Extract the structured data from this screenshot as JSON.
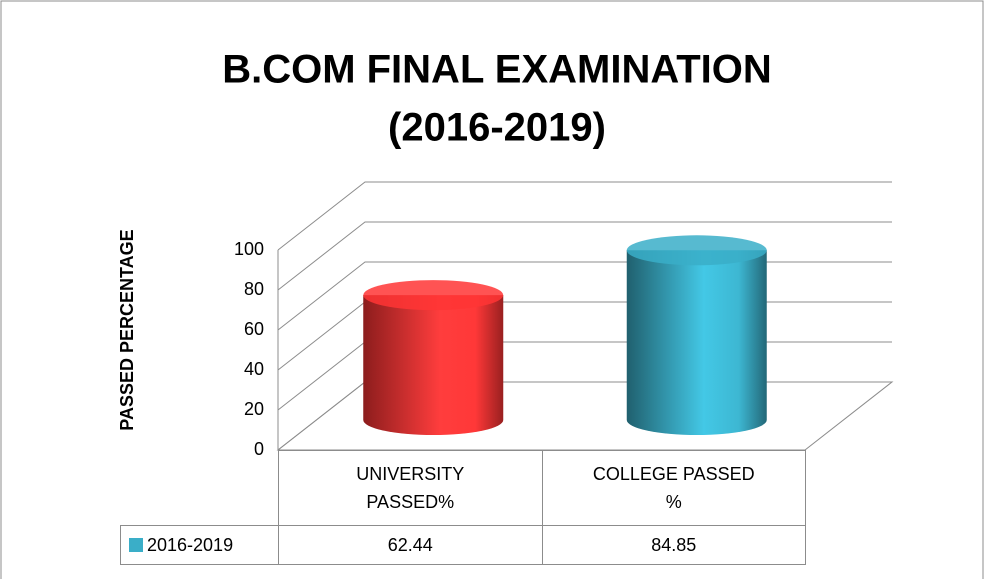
{
  "chart_data": {
    "type": "cylinder",
    "title": "B.COM FINAL EXAMINATION",
    "subtitle": "(2016-2019)",
    "y_label": "PASSED PERCENTAGE",
    "categories": [
      "UNIVERSITY\nPASSED%",
      "COLLEGE PASSED\n%"
    ],
    "series": [
      {
        "name": "2016-2019",
        "color": "#3aaec8",
        "point_colors": [
          "#ff3535",
          "#3aaec8"
        ],
        "values": [
          62.44,
          84.85
        ]
      }
    ],
    "ylim": [
      0,
      100
    ],
    "yticks": [
      0,
      20,
      40,
      60,
      80,
      100
    ],
    "grid": true,
    "data_table": true
  }
}
